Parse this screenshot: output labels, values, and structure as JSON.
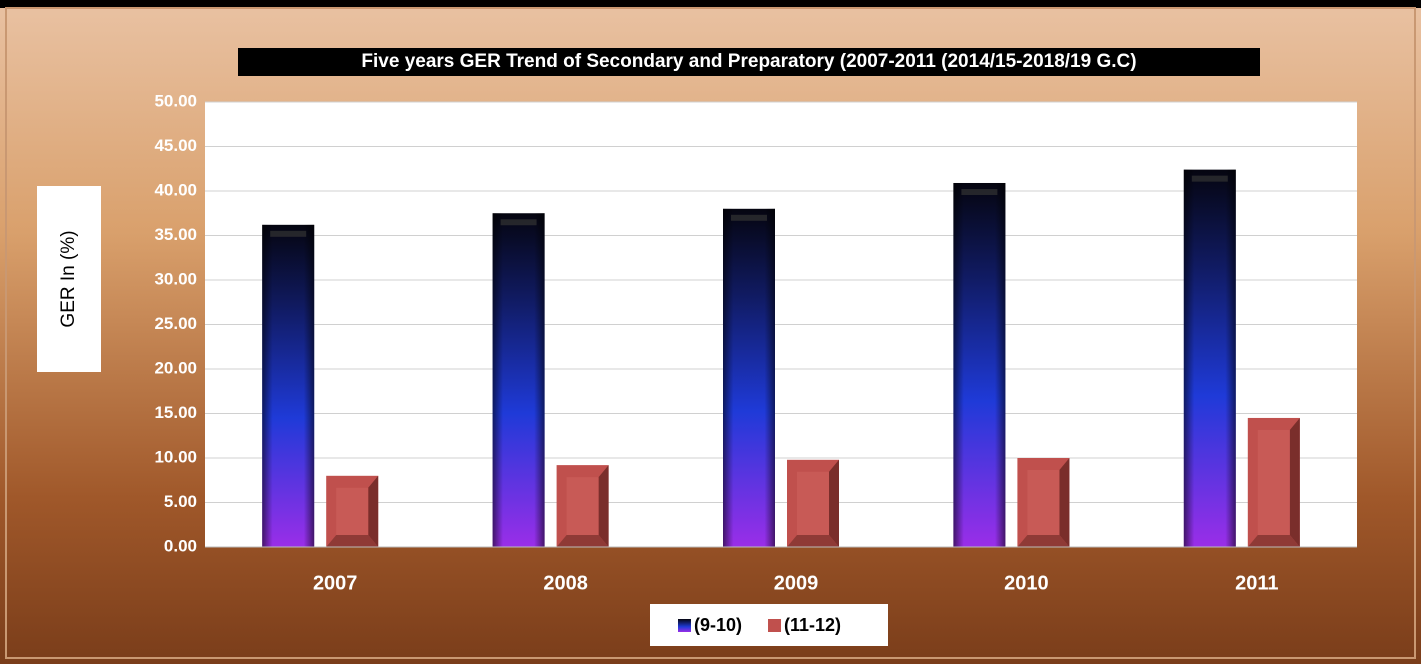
{
  "chart_data": {
    "type": "bar",
    "title": "Five  years  GER Trend of Secondary and Preparatory (2007-2011 (2014/15-2018/19 G.C)",
    "y_label": "GER In (%)",
    "categories": [
      "2007",
      "2008",
      "2009",
      "2010",
      "2011"
    ],
    "series": [
      {
        "name": "(9-10)",
        "color": "#1f2fc8",
        "values": [
          36.2,
          37.5,
          38.0,
          40.9,
          42.4
        ]
      },
      {
        "name": "(11-12)",
        "color": "#c0504d",
        "values": [
          8.0,
          9.2,
          9.8,
          10.0,
          14.5
        ]
      }
    ],
    "ylim": [
      0,
      50
    ],
    "yticks": [
      {
        "value": 0,
        "label": "0.00"
      },
      {
        "value": 5,
        "label": "5.00"
      },
      {
        "value": 10,
        "label": "10.00"
      },
      {
        "value": 15,
        "label": "15.00"
      },
      {
        "value": 20,
        "label": "20.00"
      },
      {
        "value": 25,
        "label": "25.00"
      },
      {
        "value": 30,
        "label": "30.00"
      },
      {
        "value": 35,
        "label": "35.00"
      },
      {
        "value": 40,
        "label": "40.00"
      },
      {
        "value": 45,
        "label": "45.00"
      },
      {
        "value": 50,
        "label": "50.00"
      }
    ],
    "grid": true,
    "legend": "bottom"
  }
}
